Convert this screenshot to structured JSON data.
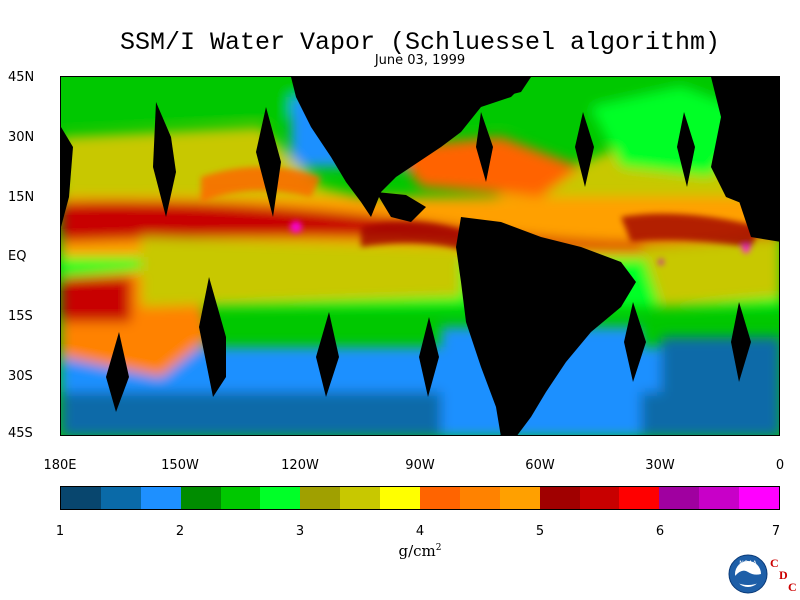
{
  "title": "SSM/I Water Vapor (Schluessel algorithm)",
  "date": "June 03, 1999",
  "lat_labels": [
    "45N",
    "30N",
    "15N",
    "EQ",
    "15S",
    "30S",
    "45S"
  ],
  "lon_labels": [
    "180E",
    "150W",
    "120W",
    "90W",
    "60W",
    "30W",
    "0"
  ],
  "colorbar": {
    "colors": [
      "#08466e",
      "#0a6aa8",
      "#1e90ff",
      "#008c00",
      "#00c800",
      "#00ff28",
      "#a0a000",
      "#c8c800",
      "#ffff00",
      "#ff6400",
      "#ff8200",
      "#ffa000",
      "#a00000",
      "#c80000",
      "#ff0000",
      "#a000a0",
      "#c800c8",
      "#ff00ff"
    ],
    "ticks": [
      "1",
      "2",
      "3",
      "4",
      "5",
      "6",
      "7"
    ],
    "min": 1,
    "max": 7
  },
  "units": "g/cm",
  "units_sup": "2",
  "logo": {
    "name": "NOAA",
    "letters": [
      "C",
      "D",
      "C"
    ]
  },
  "chart_data": {
    "type": "heatmap",
    "title": "SSM/I Water Vapor (Schluessel algorithm)",
    "subtitle": "June 03, 1999",
    "xlabel": "",
    "ylabel": "",
    "xlim": [
      -180,
      0
    ],
    "ylim": [
      -45,
      45
    ],
    "x_ticks": [
      "180E",
      "150W",
      "120W",
      "90W",
      "60W",
      "30W",
      "0"
    ],
    "y_ticks": [
      "45N",
      "30N",
      "15N",
      "EQ",
      "15S",
      "30S",
      "45S"
    ],
    "colorbar_range": [
      1,
      7
    ],
    "colorbar_unit": "g/cm2"
  }
}
